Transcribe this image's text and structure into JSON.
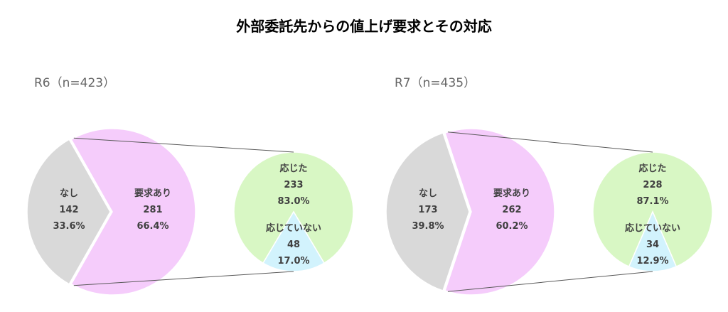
{
  "title": "外部委託先からの値上げ要求とその対応",
  "colors": {
    "none": "#d9d9d9",
    "request": "#f5ccfb",
    "accepted": "#d8f7c4",
    "not_accepted": "#d2f3fd",
    "connector": "#595959",
    "text": "#404040"
  },
  "chart_data": [
    {
      "type": "bar-of-pie",
      "title": "R6（n=423）",
      "n": 423,
      "main": {
        "slices": [
          {
            "label": "なし",
            "value": 142,
            "percent": "33.6%"
          },
          {
            "label": "要求あり",
            "value": 281,
            "percent": "66.4%"
          }
        ]
      },
      "secondary": {
        "of": "要求あり",
        "slices": [
          {
            "label": "応じた",
            "value": 233,
            "percent": "83.0%"
          },
          {
            "label": "応じていない",
            "value": 48,
            "percent": "17.0%"
          }
        ]
      }
    },
    {
      "type": "bar-of-pie",
      "title": "R7（n=435）",
      "n": 435,
      "main": {
        "slices": [
          {
            "label": "なし",
            "value": 173,
            "percent": "39.8%"
          },
          {
            "label": "要求あり",
            "value": 262,
            "percent": "60.2%"
          }
        ]
      },
      "secondary": {
        "of": "要求あり",
        "slices": [
          {
            "label": "応じた",
            "value": 228,
            "percent": "87.1%"
          },
          {
            "label": "応じていない",
            "value": 34,
            "percent": "12.9%"
          }
        ]
      }
    }
  ]
}
